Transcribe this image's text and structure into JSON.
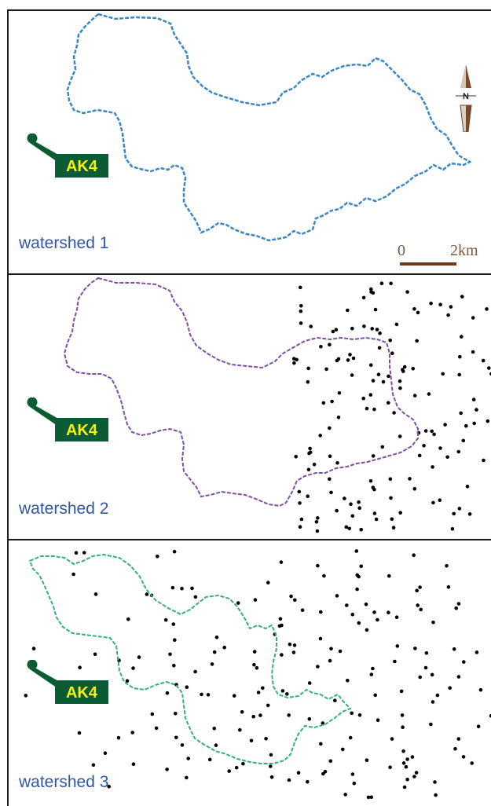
{
  "panels": [
    {
      "label": "watershed 1",
      "station": "AK4",
      "boundary_color": "#3a86c8"
    },
    {
      "label": "watershed 2",
      "station": "AK4",
      "boundary_color": "#7b4fa6"
    },
    {
      "label": "watershed 3",
      "station": "AK4",
      "boundary_color": "#35b07a"
    }
  ],
  "scale_bar": {
    "start": "0",
    "end": "2km",
    "color": "#6b3a1a"
  },
  "north_arrow": {
    "label": "N",
    "icon": "north-arrow-icon"
  },
  "colors": {
    "station_marker": "#0b5c34",
    "station_text": "#f4f114",
    "label_text": "#2f56a8",
    "points": "#000000"
  }
}
